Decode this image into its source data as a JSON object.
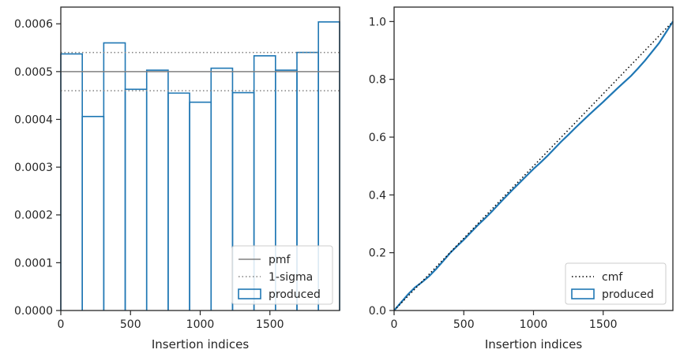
{
  "chart_data": [
    {
      "type": "histogram",
      "xlabel": "Insertion indices",
      "xlim": [
        0,
        2000
      ],
      "ylim": [
        0,
        0.000635
      ],
      "xticks": [
        0,
        500,
        1000,
        1500
      ],
      "xtick_labels": [
        "0",
        "500",
        "1000",
        "1500"
      ],
      "yticks": [
        0,
        0.0001,
        0.0002,
        0.0003,
        0.0004,
        0.0005,
        0.0006
      ],
      "ytick_labels": [
        "0.0000",
        "0.0001",
        "0.0002",
        "0.0003",
        "0.0004",
        "0.0005",
        "0.0006"
      ],
      "pmf": 0.0005,
      "sigma_band": [
        0.00046,
        0.00054
      ],
      "bin_edges": [
        0,
        154,
        308,
        462,
        616,
        770,
        924,
        1078,
        1232,
        1386,
        1540,
        1694,
        1848,
        2000
      ],
      "values": [
        0.000537,
        0.000406,
        0.00056,
        0.000463,
        0.000503,
        0.000455,
        0.000436,
        0.000507,
        0.000456,
        0.000533,
        0.000503,
        0.00054,
        0.000604
      ],
      "legend": {
        "location": "lower right",
        "entries": [
          {
            "label": "pmf",
            "style": "solid",
            "color": "#808080"
          },
          {
            "label": "1-sigma",
            "style": "dotted",
            "color": "#808080"
          },
          {
            "label": "produced",
            "style": "patch",
            "color": "#1f77b4"
          }
        ]
      },
      "grid": false
    },
    {
      "type": "line",
      "xlabel": "Insertion indices",
      "xlim": [
        0,
        2000
      ],
      "ylim": [
        0,
        1.05
      ],
      "xticks": [
        0,
        500,
        1000,
        1500
      ],
      "xtick_labels": [
        "0",
        "500",
        "1000",
        "1500"
      ],
      "yticks": [
        0,
        0.2,
        0.4,
        0.6,
        0.8,
        1.0
      ],
      "ytick_labels": [
        "0.0",
        "0.2",
        "0.4",
        "0.6",
        "0.8",
        "1.0"
      ],
      "cmf": {
        "x": [
          0,
          2000
        ],
        "y": [
          0,
          1.0
        ]
      },
      "produced": {
        "x": [
          0,
          50,
          100,
          150,
          200,
          250,
          300,
          350,
          400,
          450,
          500,
          550,
          600,
          650,
          700,
          750,
          800,
          850,
          900,
          950,
          1000,
          1050,
          1100,
          1150,
          1200,
          1250,
          1300,
          1350,
          1400,
          1450,
          1500,
          1550,
          1600,
          1650,
          1700,
          1750,
          1800,
          1850,
          1900,
          1950,
          2000
        ],
        "y": [
          0,
          0.028,
          0.056,
          0.08,
          0.098,
          0.118,
          0.143,
          0.17,
          0.198,
          0.222,
          0.245,
          0.27,
          0.295,
          0.318,
          0.342,
          0.368,
          0.393,
          0.418,
          0.442,
          0.466,
          0.49,
          0.512,
          0.535,
          0.56,
          0.585,
          0.608,
          0.632,
          0.655,
          0.678,
          0.7,
          0.722,
          0.745,
          0.768,
          0.79,
          0.812,
          0.838,
          0.865,
          0.895,
          0.925,
          0.962,
          1.0
        ]
      },
      "legend": {
        "location": "lower right",
        "entries": [
          {
            "label": "cmf",
            "style": "dotted",
            "color": "#000000"
          },
          {
            "label": "produced",
            "style": "patch",
            "color": "#1f77b4"
          }
        ]
      },
      "grid": false
    }
  ]
}
